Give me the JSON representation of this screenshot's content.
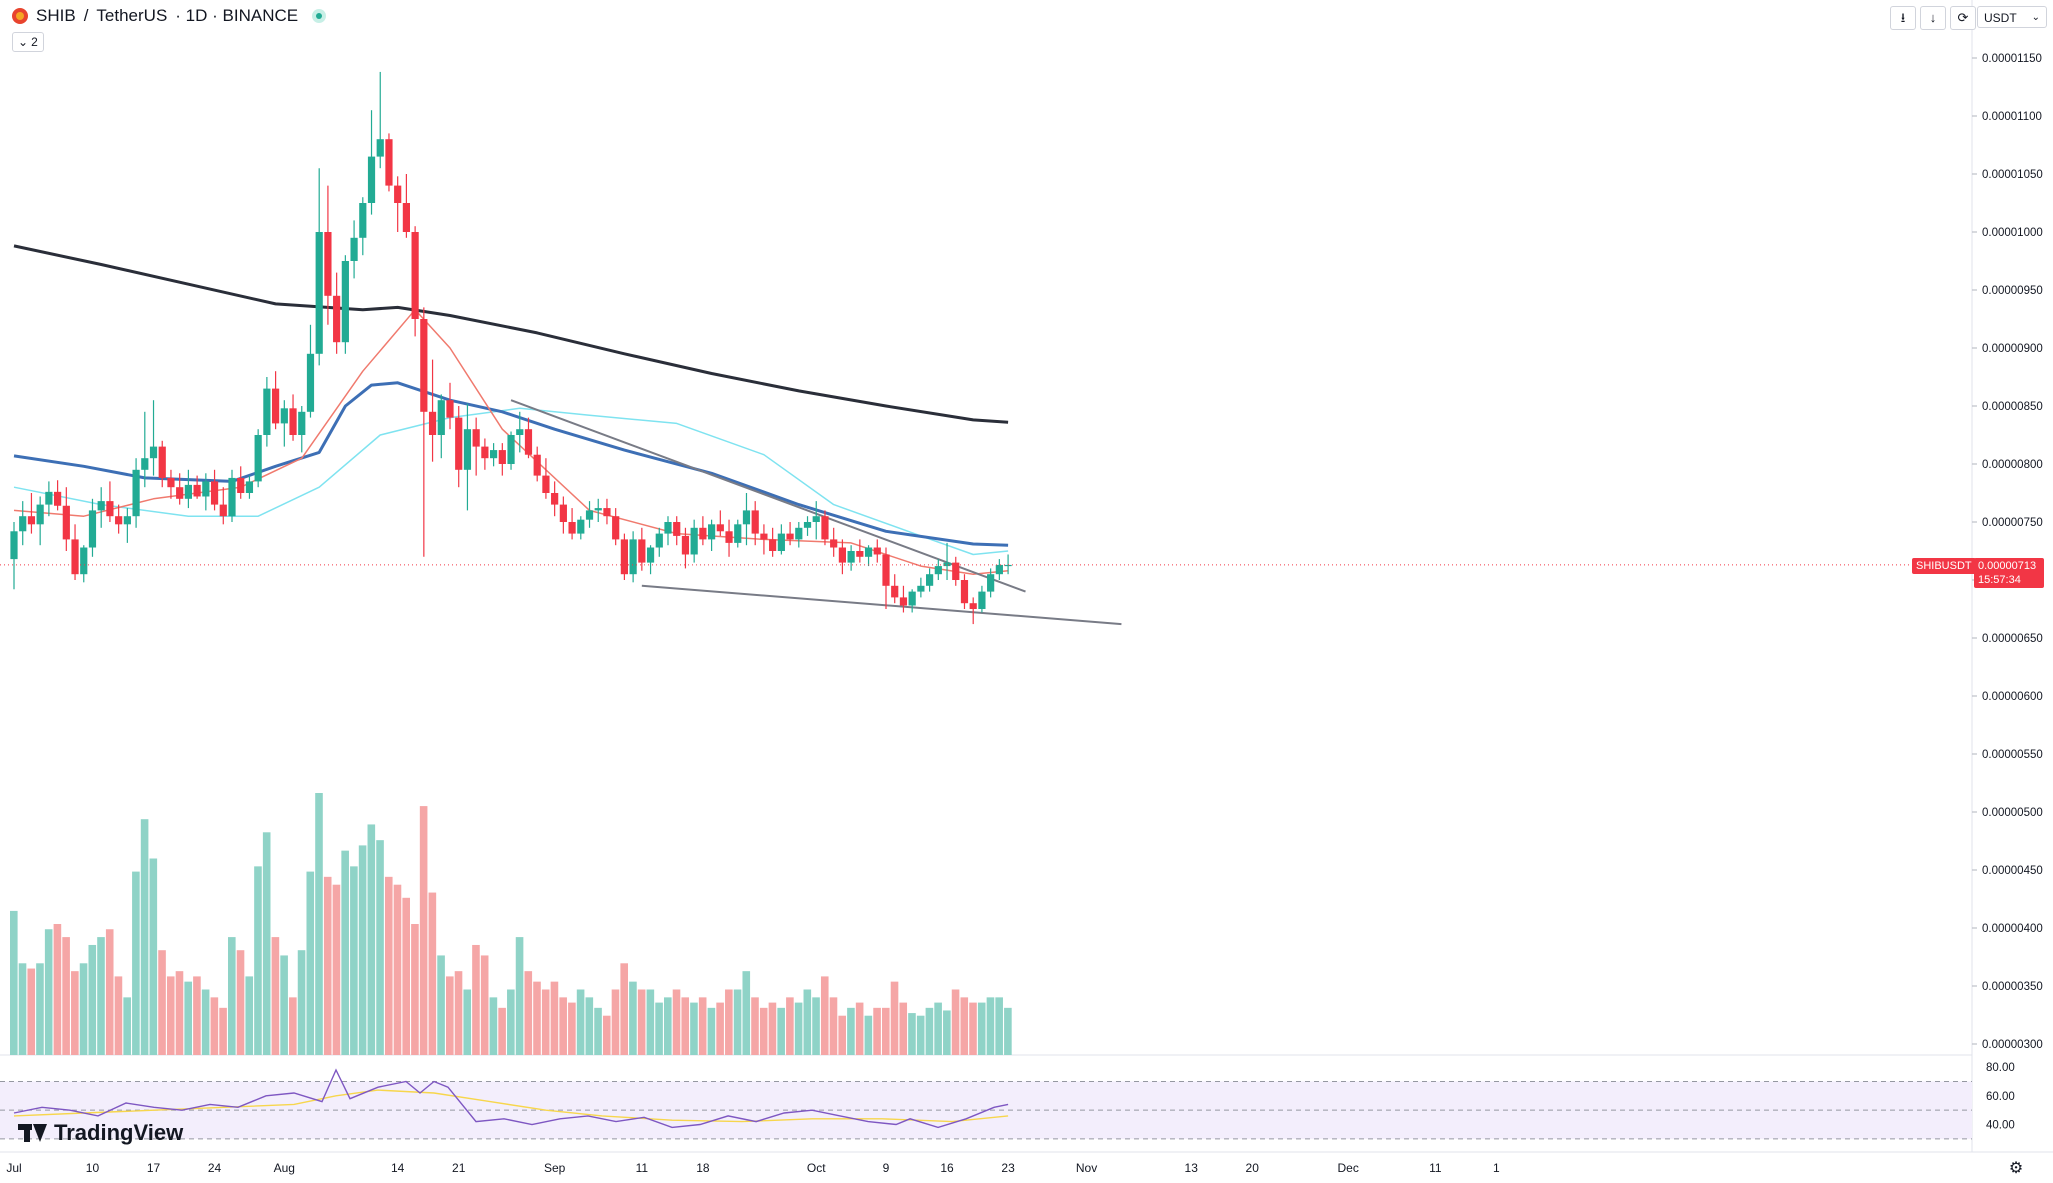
{
  "header": {
    "symbol": "SHIB",
    "separator": "/",
    "quote": "TetherUS",
    "interval_exchange": "· 1D · BINANCE"
  },
  "legend_toggle": {
    "chevron": "⌄",
    "count": "2"
  },
  "toolbar": {
    "icons": [
      "download-icon",
      "arrow-down-icon",
      "refresh-icon"
    ],
    "currency": "USDT"
  },
  "brand": {
    "name": "TradingView"
  },
  "last_price": {
    "symbol_tag": "SHIBUSDT",
    "value": "0.00000713",
    "countdown": "15:57:34",
    "color": "#f23645"
  },
  "colors": {
    "up": "#22ab94",
    "down": "#f23645",
    "ma_long": "#2a2e39",
    "ma_mid": "#3d6fb5",
    "ma_fast_cyan": "#7fe3f0",
    "ema_red": "#f07a6e",
    "rsi_line": "#7e57c2",
    "rsi_signal": "#f7d64c"
  },
  "chart_data": [
    {
      "type": "candlestick",
      "ylim": [
        2.9e-06,
        1.18e-05
      ],
      "y_ticks": [
        "0.00001150",
        "0.00001100",
        "0.00001050",
        "0.00001000",
        "0.00000950",
        "0.00000900",
        "0.00000850",
        "0.00000800",
        "0.00000750",
        "0.00000700",
        "0.00000650",
        "0.00000600",
        "0.00000550",
        "0.00000500",
        "0.00000450",
        "0.00000400",
        "0.00000350",
        "0.00000300"
      ],
      "x_ticks": [
        "Jul",
        "10",
        "17",
        "24",
        "Aug",
        "14",
        "21",
        "Sep",
        "11",
        "18",
        "Oct",
        "9",
        "16",
        "23",
        "Nov",
        "13",
        "20",
        "Dec",
        "11",
        "1"
      ],
      "x_tick_days": [
        0,
        9,
        16,
        23,
        31,
        44,
        51,
        62,
        72,
        79,
        92,
        100,
        107,
        114,
        123,
        135,
        142,
        153,
        163,
        170
      ],
      "candles_ohlc": [
        [
          7.18,
          7.5,
          6.92,
          7.42
        ],
        [
          7.42,
          7.68,
          7.3,
          7.55
        ],
        [
          7.55,
          7.75,
          7.4,
          7.48
        ],
        [
          7.48,
          7.72,
          7.3,
          7.65
        ],
        [
          7.65,
          7.85,
          7.55,
          7.76
        ],
        [
          7.76,
          7.86,
          7.6,
          7.64
        ],
        [
          7.64,
          7.8,
          7.25,
          7.35
        ],
        [
          7.35,
          7.48,
          7.0,
          7.05
        ],
        [
          7.05,
          7.3,
          6.98,
          7.28
        ],
        [
          7.28,
          7.7,
          7.2,
          7.6
        ],
        [
          7.6,
          7.8,
          7.45,
          7.68
        ],
        [
          7.68,
          7.85,
          7.5,
          7.55
        ],
        [
          7.55,
          7.65,
          7.4,
          7.48
        ],
        [
          7.48,
          7.62,
          7.32,
          7.55
        ],
        [
          7.55,
          8.05,
          7.45,
          7.95
        ],
        [
          7.95,
          8.45,
          7.8,
          8.05
        ],
        [
          8.05,
          8.55,
          7.9,
          8.15
        ],
        [
          8.15,
          8.2,
          7.8,
          7.88
        ],
        [
          7.88,
          7.95,
          7.7,
          7.8
        ],
        [
          7.8,
          7.92,
          7.65,
          7.7
        ],
        [
          7.7,
          7.95,
          7.62,
          7.82
        ],
        [
          7.82,
          7.9,
          7.7,
          7.72
        ],
        [
          7.72,
          7.92,
          7.6,
          7.85
        ],
        [
          7.85,
          7.95,
          7.6,
          7.65
        ],
        [
          7.65,
          7.8,
          7.48,
          7.55
        ],
        [
          7.55,
          7.95,
          7.5,
          7.88
        ],
        [
          7.88,
          7.98,
          7.7,
          7.75
        ],
        [
          7.75,
          7.9,
          7.7,
          7.85
        ],
        [
          7.85,
          8.3,
          7.8,
          8.25
        ],
        [
          8.25,
          8.75,
          8.15,
          8.65
        ],
        [
          8.65,
          8.8,
          8.3,
          8.35
        ],
        [
          8.35,
          8.55,
          8.15,
          8.48
        ],
        [
          8.48,
          8.6,
          8.2,
          8.25
        ],
        [
          8.25,
          8.5,
          8.1,
          8.45
        ],
        [
          8.45,
          9.2,
          8.4,
          8.95
        ],
        [
          8.95,
          10.55,
          8.85,
          10.0
        ],
        [
          10.0,
          10.4,
          9.2,
          9.45
        ],
        [
          9.45,
          9.65,
          8.95,
          9.05
        ],
        [
          9.05,
          9.8,
          8.95,
          9.75
        ],
        [
          9.75,
          10.1,
          9.6,
          9.95
        ],
        [
          9.95,
          10.3,
          9.8,
          10.25
        ],
        [
          10.25,
          11.05,
          10.15,
          10.65
        ],
        [
          10.65,
          11.38,
          10.55,
          10.8
        ],
        [
          10.8,
          10.85,
          10.35,
          10.4
        ],
        [
          10.4,
          10.48,
          10.0,
          10.25
        ],
        [
          10.25,
          10.5,
          9.95,
          10.0
        ],
        [
          10.0,
          10.05,
          9.1,
          9.25
        ],
        [
          9.25,
          9.35,
          7.2,
          8.45
        ],
        [
          8.45,
          8.9,
          8.02,
          8.25
        ],
        [
          8.25,
          8.6,
          8.05,
          8.55
        ],
        [
          8.55,
          8.7,
          8.3,
          8.4
        ],
        [
          8.4,
          8.5,
          7.8,
          7.95
        ],
        [
          7.95,
          8.52,
          7.6,
          8.3
        ],
        [
          8.3,
          8.4,
          7.9,
          8.15
        ],
        [
          8.15,
          8.22,
          7.95,
          8.05
        ],
        [
          8.05,
          8.18,
          7.98,
          8.12
        ],
        [
          8.12,
          8.18,
          7.9,
          8.0
        ],
        [
          8.0,
          8.28,
          7.95,
          8.25
        ],
        [
          8.25,
          8.45,
          8.1,
          8.3
        ],
        [
          8.3,
          8.4,
          8.05,
          8.08
        ],
        [
          8.08,
          8.15,
          7.85,
          7.9
        ],
        [
          7.9,
          8.05,
          7.7,
          7.75
        ],
        [
          7.75,
          7.85,
          7.55,
          7.65
        ],
        [
          7.65,
          7.72,
          7.4,
          7.5
        ],
        [
          7.5,
          7.62,
          7.35,
          7.4
        ],
        [
          7.4,
          7.55,
          7.35,
          7.52
        ],
        [
          7.52,
          7.68,
          7.45,
          7.6
        ],
        [
          7.6,
          7.7,
          7.5,
          7.62
        ],
        [
          7.62,
          7.7,
          7.48,
          7.55
        ],
        [
          7.55,
          7.62,
          7.3,
          7.35
        ],
        [
          7.35,
          7.4,
          7.0,
          7.05
        ],
        [
          7.05,
          7.42,
          6.98,
          7.35
        ],
        [
          7.35,
          7.45,
          7.08,
          7.15
        ],
        [
          7.15,
          7.3,
          7.05,
          7.28
        ],
        [
          7.28,
          7.45,
          7.2,
          7.4
        ],
        [
          7.4,
          7.55,
          7.3,
          7.5
        ],
        [
          7.5,
          7.55,
          7.3,
          7.38
        ],
        [
          7.38,
          7.45,
          7.1,
          7.22
        ],
        [
          7.22,
          7.52,
          7.15,
          7.45
        ],
        [
          7.45,
          7.55,
          7.3,
          7.35
        ],
        [
          7.35,
          7.52,
          7.25,
          7.48
        ],
        [
          7.48,
          7.6,
          7.38,
          7.42
        ],
        [
          7.42,
          7.52,
          7.2,
          7.32
        ],
        [
          7.32,
          7.52,
          7.28,
          7.48
        ],
        [
          7.48,
          7.75,
          7.3,
          7.6
        ],
        [
          7.6,
          7.68,
          7.3,
          7.4
        ],
        [
          7.4,
          7.48,
          7.22,
          7.35
        ],
        [
          7.35,
          7.45,
          7.2,
          7.25
        ],
        [
          7.25,
          7.48,
          7.22,
          7.4
        ],
        [
          7.4,
          7.5,
          7.3,
          7.35
        ],
        [
          7.35,
          7.5,
          7.28,
          7.45
        ],
        [
          7.45,
          7.55,
          7.38,
          7.5
        ],
        [
          7.5,
          7.68,
          7.35,
          7.55
        ],
        [
          7.55,
          7.6,
          7.3,
          7.35
        ],
        [
          7.35,
          7.45,
          7.2,
          7.28
        ],
        [
          7.28,
          7.35,
          7.05,
          7.15
        ],
        [
          7.15,
          7.3,
          7.08,
          7.25
        ],
        [
          7.25,
          7.35,
          7.15,
          7.2
        ],
        [
          7.2,
          7.3,
          7.12,
          7.28
        ],
        [
          7.28,
          7.35,
          7.15,
          7.22
        ],
        [
          7.22,
          7.28,
          6.75,
          6.95
        ],
        [
          6.95,
          7.05,
          6.8,
          6.85
        ],
        [
          6.85,
          6.95,
          6.72,
          6.78
        ],
        [
          6.78,
          6.92,
          6.72,
          6.9
        ],
        [
          6.9,
          7.02,
          6.85,
          6.95
        ],
        [
          6.95,
          7.1,
          6.9,
          7.05
        ],
        [
          7.05,
          7.18,
          7.0,
          7.12
        ],
        [
          7.12,
          7.32,
          7.0,
          7.15
        ],
        [
          7.15,
          7.2,
          6.95,
          7.0
        ],
        [
          7.0,
          7.05,
          6.75,
          6.8
        ],
        [
          6.8,
          6.85,
          6.62,
          6.75
        ],
        [
          6.75,
          6.95,
          6.72,
          6.9
        ],
        [
          6.9,
          7.1,
          6.85,
          7.05
        ],
        [
          7.05,
          7.18,
          7.0,
          7.13
        ],
        [
          7.13,
          7.22,
          7.05,
          7.13
        ]
      ],
      "ma_long_points": [
        [
          0,
          9.88
        ],
        [
          10,
          9.72
        ],
        [
          20,
          9.55
        ],
        [
          30,
          9.38
        ],
        [
          40,
          9.33
        ],
        [
          44,
          9.35
        ],
        [
          50,
          9.28
        ],
        [
          60,
          9.13
        ],
        [
          70,
          8.95
        ],
        [
          80,
          8.78
        ],
        [
          90,
          8.63
        ],
        [
          100,
          8.5
        ],
        [
          110,
          8.38
        ],
        [
          114,
          8.36
        ]
      ],
      "ma_mid_points": [
        [
          0,
          8.07
        ],
        [
          8,
          7.98
        ],
        [
          15,
          7.88
        ],
        [
          25,
          7.85
        ],
        [
          30,
          7.98
        ],
        [
          35,
          8.1
        ],
        [
          38,
          8.5
        ],
        [
          41,
          8.68
        ],
        [
          44,
          8.7
        ],
        [
          50,
          8.55
        ],
        [
          56,
          8.45
        ],
        [
          62,
          8.3
        ],
        [
          70,
          8.12
        ],
        [
          80,
          7.92
        ],
        [
          90,
          7.65
        ],
        [
          100,
          7.42
        ],
        [
          110,
          7.31
        ],
        [
          114,
          7.3
        ]
      ],
      "ma_fast_cyan_points": [
        [
          0,
          7.8
        ],
        [
          10,
          7.65
        ],
        [
          20,
          7.55
        ],
        [
          28,
          7.55
        ],
        [
          35,
          7.8
        ],
        [
          42,
          8.25
        ],
        [
          50,
          8.4
        ],
        [
          58,
          8.48
        ],
        [
          66,
          8.42
        ],
        [
          76,
          8.35
        ],
        [
          86,
          8.08
        ],
        [
          94,
          7.65
        ],
        [
          104,
          7.38
        ],
        [
          110,
          7.22
        ],
        [
          114,
          7.25
        ]
      ],
      "ema_red_points": [
        [
          0,
          7.6
        ],
        [
          8,
          7.55
        ],
        [
          16,
          7.7
        ],
        [
          26,
          7.8
        ],
        [
          33,
          8.05
        ],
        [
          40,
          8.8
        ],
        [
          46,
          9.33
        ],
        [
          50,
          9.0
        ],
        [
          56,
          8.3
        ],
        [
          66,
          7.6
        ],
        [
          76,
          7.4
        ],
        [
          86,
          7.35
        ],
        [
          96,
          7.32
        ],
        [
          104,
          7.12
        ],
        [
          110,
          7.05
        ],
        [
          114,
          7.08
        ]
      ],
      "trendlines": [
        {
          "from": [
            57,
            8.55
          ],
          "to": [
            116,
            6.9
          ]
        },
        {
          "from": [
            72,
            6.95
          ],
          "to": [
            127,
            6.62
          ]
        }
      ],
      "volumes": [
        0.55,
        0.35,
        0.33,
        0.35,
        0.48,
        0.5,
        0.45,
        0.32,
        0.35,
        0.42,
        0.45,
        0.48,
        0.3,
        0.22,
        0.7,
        0.9,
        0.75,
        0.4,
        0.3,
        0.32,
        0.28,
        0.3,
        0.25,
        0.22,
        0.18,
        0.45,
        0.4,
        0.3,
        0.72,
        0.85,
        0.45,
        0.38,
        0.22,
        0.4,
        0.7,
        1.0,
        0.68,
        0.65,
        0.78,
        0.72,
        0.8,
        0.88,
        0.82,
        0.68,
        0.65,
        0.6,
        0.5,
        0.95,
        0.62,
        0.38,
        0.3,
        0.32,
        0.25,
        0.42,
        0.38,
        0.22,
        0.18,
        0.25,
        0.45,
        0.32,
        0.28,
        0.25,
        0.28,
        0.22,
        0.2,
        0.25,
        0.22,
        0.18,
        0.15,
        0.25,
        0.35,
        0.28,
        0.25,
        0.25,
        0.2,
        0.22,
        0.25,
        0.22,
        0.2,
        0.22,
        0.18,
        0.2,
        0.25,
        0.25,
        0.32,
        0.22,
        0.18,
        0.2,
        0.18,
        0.22,
        0.2,
        0.25,
        0.22,
        0.3,
        0.22,
        0.15,
        0.18,
        0.2,
        0.15,
        0.18,
        0.18,
        0.28,
        0.2,
        0.16,
        0.15,
        0.18,
        0.2,
        0.17,
        0.25,
        0.22,
        0.2,
        0.2,
        0.22,
        0.22,
        0.18
      ],
      "rsi_ticks": [
        "80.00",
        "60.00",
        "40.00"
      ],
      "rsi_ylim": [
        25,
        85
      ],
      "rsi_line_points": [
        [
          0,
          48
        ],
        [
          4,
          52
        ],
        [
          8,
          50
        ],
        [
          12,
          46
        ],
        [
          16,
          55
        ],
        [
          20,
          52
        ],
        [
          24,
          50
        ],
        [
          28,
          54
        ],
        [
          32,
          52
        ],
        [
          36,
          60
        ],
        [
          40,
          62
        ],
        [
          44,
          56
        ],
        [
          46,
          78
        ],
        [
          48,
          58
        ],
        [
          52,
          66
        ],
        [
          56,
          70
        ],
        [
          58,
          62
        ],
        [
          60,
          70
        ],
        [
          62,
          66
        ],
        [
          66,
          42
        ],
        [
          70,
          44
        ],
        [
          74,
          40
        ],
        [
          78,
          44
        ],
        [
          82,
          46
        ],
        [
          86,
          42
        ],
        [
          90,
          45
        ],
        [
          94,
          38
        ],
        [
          98,
          40
        ],
        [
          102,
          46
        ],
        [
          106,
          42
        ],
        [
          110,
          48
        ],
        [
          114,
          50
        ],
        [
          118,
          46
        ],
        [
          122,
          42
        ],
        [
          126,
          40
        ],
        [
          128,
          44
        ],
        [
          132,
          38
        ],
        [
          136,
          44
        ],
        [
          140,
          52
        ],
        [
          142,
          54
        ]
      ],
      "rsi_signal_points": [
        [
          0,
          46
        ],
        [
          10,
          48
        ],
        [
          20,
          50
        ],
        [
          30,
          52
        ],
        [
          40,
          54
        ],
        [
          46,
          60
        ],
        [
          52,
          64
        ],
        [
          60,
          62
        ],
        [
          68,
          56
        ],
        [
          76,
          50
        ],
        [
          84,
          46
        ],
        [
          94,
          43
        ],
        [
          104,
          42
        ],
        [
          114,
          44
        ],
        [
          124,
          44
        ],
        [
          134,
          42
        ],
        [
          142,
          46
        ]
      ]
    }
  ]
}
